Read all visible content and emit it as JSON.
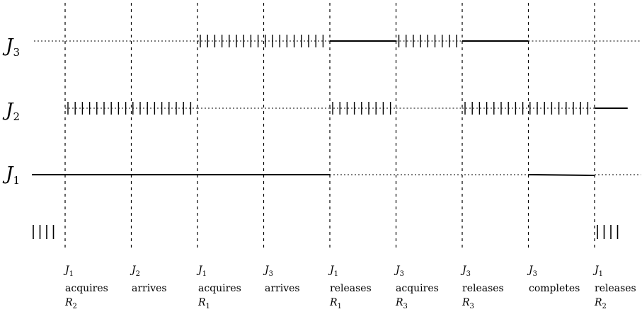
{
  "jobs": [
    {
      "name": "J",
      "sub": "3"
    },
    {
      "name": "J",
      "sub": "2"
    },
    {
      "name": "J",
      "sub": "1"
    }
  ],
  "events": [
    {
      "job": "J",
      "job_sub": "1",
      "action": "acquires",
      "res": "R",
      "res_sub": "2"
    },
    {
      "job": "J",
      "job_sub": "2",
      "action": "arrives",
      "res": "",
      "res_sub": ""
    },
    {
      "job": "J",
      "job_sub": "1",
      "action": "acquires",
      "res": "R",
      "res_sub": "1"
    },
    {
      "job": "J",
      "job_sub": "3",
      "action": "arrives",
      "res": "",
      "res_sub": ""
    },
    {
      "job": "J",
      "job_sub": "1",
      "action": "releases",
      "res": "R",
      "res_sub": "1"
    },
    {
      "job": "J",
      "job_sub": "3",
      "action": "acquires",
      "res": "R",
      "res_sub": "3"
    },
    {
      "job": "J",
      "job_sub": "3",
      "action": "releases",
      "res": "R",
      "res_sub": "3"
    },
    {
      "job": "J",
      "job_sub": "3",
      "action": "completes",
      "res": "",
      "res_sub": ""
    },
    {
      "job": "J",
      "job_sub": "1",
      "action": "releases",
      "res": "R",
      "res_sub": "2"
    }
  ],
  "timeline": {
    "J3": [
      {
        "from": 0,
        "to": 2,
        "state": "idle"
      },
      {
        "from": 2,
        "to": 4,
        "state": "blocked"
      },
      {
        "from": 4,
        "to": 5,
        "state": "running"
      },
      {
        "from": 5,
        "to": 6,
        "state": "blocked"
      },
      {
        "from": 6,
        "to": 7,
        "state": "running"
      },
      {
        "from": 7,
        "to": 9,
        "state": "idle"
      }
    ],
    "J2": [
      {
        "from": 0,
        "to": 2,
        "state": "blocked"
      },
      {
        "from": 2,
        "to": 4,
        "state": "idle"
      },
      {
        "from": 4,
        "to": 5,
        "state": "blocked"
      },
      {
        "from": 5,
        "to": 6,
        "state": "idle"
      },
      {
        "from": 6,
        "to": 8,
        "state": "blocked"
      },
      {
        "from": 8,
        "to": 8.5,
        "state": "running"
      }
    ],
    "J1": [
      {
        "from": -0.5,
        "to": 4,
        "state": "running"
      },
      {
        "from": 4,
        "to": 7,
        "state": "idle"
      },
      {
        "from": 7,
        "to": 8,
        "state": "running"
      },
      {
        "from": 8,
        "to": 8.7,
        "state": "idle"
      }
    ]
  }
}
